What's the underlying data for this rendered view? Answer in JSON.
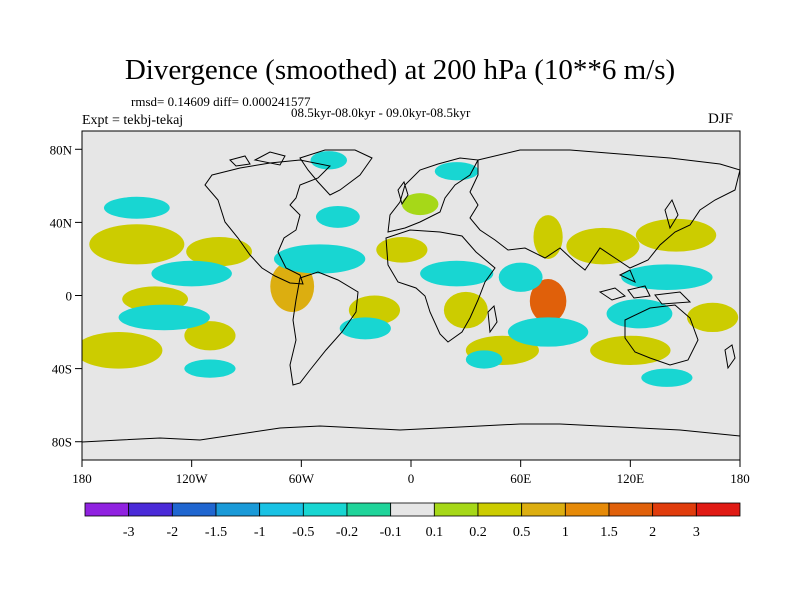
{
  "header": {
    "title": "Divergence (smoothed) at 200 hPa (10**6 m/s)",
    "stats": "rmsd= 0.14609  diff= 0.000241577",
    "period": "08.5kyr-08.0kyr - 09.0kyr-08.5kyr",
    "experiment": "Expt = tekbj-tekaj",
    "season": "DJF"
  },
  "chart_data": {
    "type": "heatmap",
    "projection": "cylindrical-equidistant",
    "xlim": [
      -180,
      180
    ],
    "ylim": [
      -90,
      90
    ],
    "x_ticks": [
      {
        "value": -180,
        "label": "180"
      },
      {
        "value": -120,
        "label": "120W"
      },
      {
        "value": -60,
        "label": "60W"
      },
      {
        "value": 0,
        "label": "0"
      },
      {
        "value": 60,
        "label": "60E"
      },
      {
        "value": 120,
        "label": "120E"
      },
      {
        "value": 180,
        "label": "180"
      }
    ],
    "y_ticks": [
      {
        "value": 80,
        "label": "80N"
      },
      {
        "value": 40,
        "label": "40N"
      },
      {
        "value": 0,
        "label": "0"
      },
      {
        "value": -40,
        "label": "40S"
      },
      {
        "value": -80,
        "label": "80S"
      }
    ],
    "colorbar": {
      "labels": [
        "-3",
        "-2",
        "-1.5",
        "-1",
        "-0.5",
        "-0.2",
        "-0.1",
        "0.1",
        "0.2",
        "0.5",
        "1",
        "1.5",
        "2",
        "3"
      ],
      "colors": [
        "#9022e0",
        "#4a2ad8",
        "#2066d0",
        "#1a9ad8",
        "#19c2e4",
        "#18d6d2",
        "#20d49a",
        "#e6e6e6",
        "#a6d818",
        "#cccc00",
        "#dcae10",
        "#e68a08",
        "#e0600a",
        "#e03c0c",
        "#e01a14"
      ]
    },
    "features": [
      {
        "name": "pos-npac-1",
        "lon": -150,
        "lat": 28,
        "rx": 26,
        "ry": 11,
        "value": 0.3
      },
      {
        "name": "pos-npac-2",
        "lon": -105,
        "lat": 24,
        "rx": 18,
        "ry": 8,
        "value": 0.25
      },
      {
        "name": "pos-sahara",
        "lon": -5,
        "lat": 25,
        "rx": 14,
        "ry": 7,
        "value": 0.25
      },
      {
        "name": "pos-eur-n",
        "lon": 5,
        "lat": 50,
        "rx": 10,
        "ry": 6,
        "value": 0.2
      },
      {
        "name": "pos-asia-1",
        "lon": 75,
        "lat": 32,
        "rx": 8,
        "ry": 12,
        "value": 0.25
      },
      {
        "name": "pos-asia-2",
        "lon": 105,
        "lat": 27,
        "rx": 20,
        "ry": 10,
        "value": 0.3
      },
      {
        "name": "pos-npac-w",
        "lon": 145,
        "lat": 33,
        "rx": 22,
        "ry": 9,
        "value": 0.3
      },
      {
        "name": "pos-india",
        "lon": 75,
        "lat": -3,
        "rx": 10,
        "ry": 12,
        "value": 1.6
      },
      {
        "name": "pos-epac",
        "lon": -140,
        "lat": -2,
        "rx": 18,
        "ry": 7,
        "value": 0.3
      },
      {
        "name": "pos-amz",
        "lon": -65,
        "lat": 5,
        "rx": 12,
        "ry": 14,
        "value": 0.8
      },
      {
        "name": "pos-satl",
        "lon": -20,
        "lat": -8,
        "rx": 14,
        "ry": 8,
        "value": 0.4
      },
      {
        "name": "pos-safr",
        "lon": 30,
        "lat": -8,
        "rx": 12,
        "ry": 10,
        "value": 0.4
      },
      {
        "name": "pos-swio",
        "lon": 50,
        "lat": -30,
        "rx": 20,
        "ry": 8,
        "value": 0.3
      },
      {
        "name": "pos-spac-1",
        "lon": -160,
        "lat": -30,
        "rx": 24,
        "ry": 10,
        "value": 0.3
      },
      {
        "name": "pos-spac-2",
        "lon": -110,
        "lat": -22,
        "rx": 14,
        "ry": 8,
        "value": 0.3
      },
      {
        "name": "pos-sio",
        "lon": 120,
        "lat": -30,
        "rx": 22,
        "ry": 8,
        "value": 0.3
      },
      {
        "name": "pos-aus",
        "lon": 165,
        "lat": -12,
        "rx": 14,
        "ry": 8,
        "value": 0.3
      },
      {
        "name": "neg-arctic-1",
        "lon": -45,
        "lat": 74,
        "rx": 10,
        "ry": 5,
        "value": -0.2
      },
      {
        "name": "neg-arctic-2",
        "lon": 25,
        "lat": 68,
        "rx": 12,
        "ry": 5,
        "value": -0.2
      },
      {
        "name": "neg-atl",
        "lon": -40,
        "lat": 43,
        "rx": 12,
        "ry": 6,
        "value": -0.25
      },
      {
        "name": "neg-trop-pac",
        "lon": -120,
        "lat": 12,
        "rx": 22,
        "ry": 7,
        "value": -0.3
      },
      {
        "name": "neg-carib",
        "lon": -50,
        "lat": 20,
        "rx": 25,
        "ry": 8,
        "value": -0.3
      },
      {
        "name": "neg-nafr",
        "lon": 25,
        "lat": 12,
        "rx": 20,
        "ry": 7,
        "value": -0.3
      },
      {
        "name": "neg-arabia",
        "lon": 60,
        "lat": 10,
        "rx": 12,
        "ry": 8,
        "value": -0.3
      },
      {
        "name": "neg-wpac",
        "lon": 140,
        "lat": 10,
        "rx": 25,
        "ry": 7,
        "value": -0.4
      },
      {
        "name": "neg-npac-e",
        "lon": -150,
        "lat": 48,
        "rx": 18,
        "ry": 6,
        "value": -0.2
      },
      {
        "name": "neg-ind-s",
        "lon": 75,
        "lat": -20,
        "rx": 22,
        "ry": 8,
        "value": -0.4
      },
      {
        "name": "neg-aus-s",
        "lon": 125,
        "lat": -10,
        "rx": 18,
        "ry": 8,
        "value": -0.3
      },
      {
        "name": "neg-spac",
        "lon": -135,
        "lat": -12,
        "rx": 25,
        "ry": 7,
        "value": -0.3
      },
      {
        "name": "neg-satl-2",
        "lon": -25,
        "lat": -18,
        "rx": 14,
        "ry": 6,
        "value": -0.3
      },
      {
        "name": "neg-so-1",
        "lon": -110,
        "lat": -40,
        "rx": 14,
        "ry": 5,
        "value": -0.2
      },
      {
        "name": "neg-so-2",
        "lon": 140,
        "lat": -45,
        "rx": 14,
        "ry": 5,
        "value": -0.2
      },
      {
        "name": "neg-safr-e",
        "lon": 40,
        "lat": -35,
        "rx": 10,
        "ry": 5,
        "value": -0.2
      }
    ]
  }
}
